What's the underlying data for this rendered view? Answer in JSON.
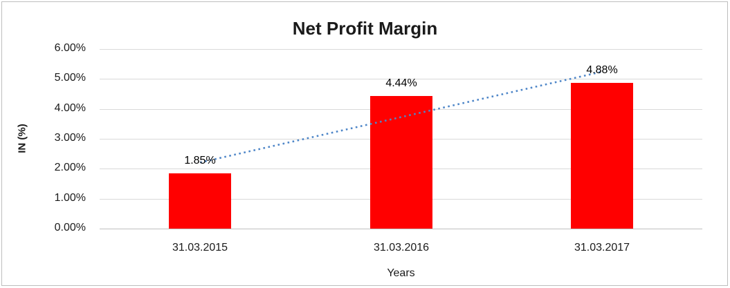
{
  "chart_data": {
    "type": "bar",
    "title": "Net Profit Margin",
    "categories": [
      "31.03.2015",
      "31.03.2016",
      "31.03.2017"
    ],
    "values": [
      1.85,
      4.44,
      4.88
    ],
    "data_labels": [
      "1.85%",
      "4.44%",
      "4.88%"
    ],
    "xlabel": "Years",
    "ylabel": "IN (%)",
    "ylim": [
      0,
      6
    ],
    "ytick_step": 1,
    "yticks": [
      "0.00%",
      "1.00%",
      "2.00%",
      "3.00%",
      "4.00%",
      "5.00%",
      "6.00%"
    ],
    "grid": true,
    "legend": "none",
    "bar_color": "#ff0000",
    "gridline_color": "#d9d9d9",
    "axis_line_color": "#bfbfbf",
    "background_color": "#ffffff",
    "trendline": {
      "type": "linear",
      "style": "dotted",
      "color": "#4e86c8",
      "start_value": 2.21,
      "end_value": 5.24
    }
  }
}
